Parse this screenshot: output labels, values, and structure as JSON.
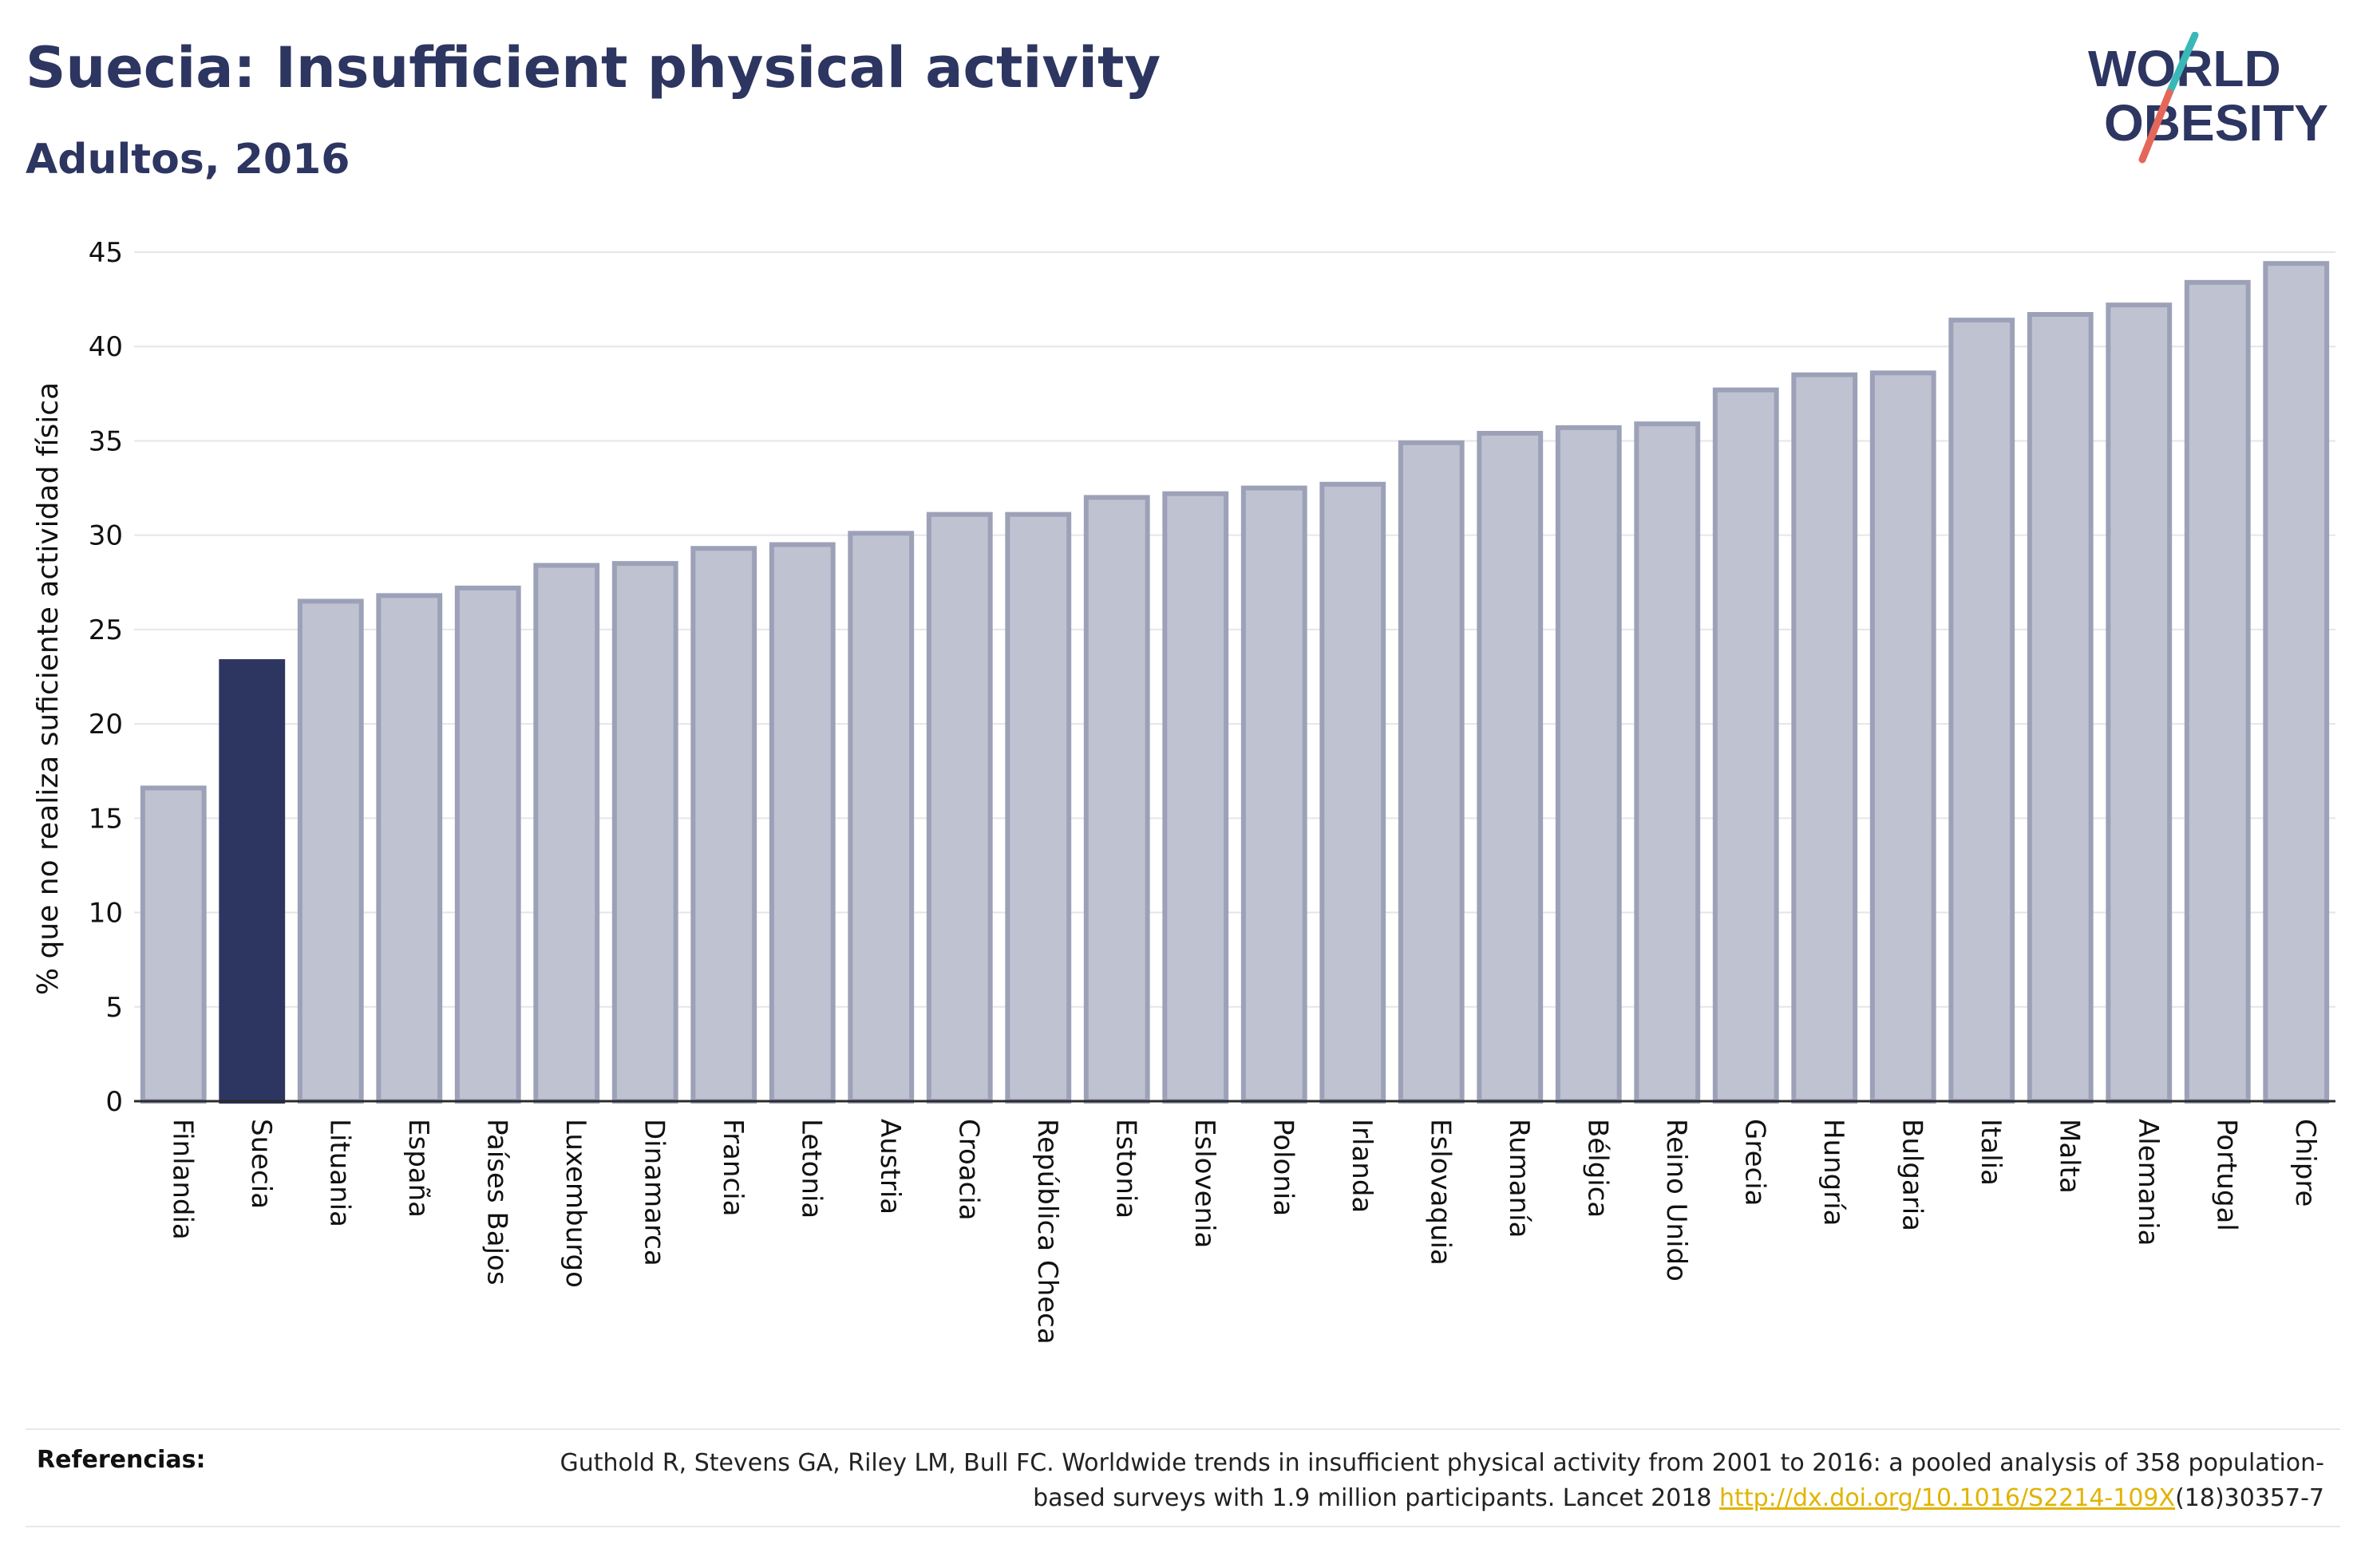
{
  "header": {
    "title": "Suecia: Insufficient physical activity",
    "subtitle": "Adultos, 2016"
  },
  "logo": {
    "line1": "WORLD",
    "line2": "OBESITY"
  },
  "references": {
    "label": "Referencias:",
    "text_before": "Guthold R, Stevens GA, Riley LM, Bull FC. Worldwide trends in insufficient physical activity from 2001 to 2016: a pooled analysis of 358 population-based surveys with 1.9 million participants. Lancet 2018 ",
    "link": "http://dx.doi.org/10.1016/S2214-109X",
    "text_after": "(18)30357-7"
  },
  "colors": {
    "highlight": "#2d3561",
    "bar_fill": "#bfc2d1",
    "bar_stroke": "#9da1b8",
    "link": "#e0b400"
  },
  "chart_data": {
    "type": "bar",
    "ylabel": "% que no realiza suficiente actividad física",
    "ylim": [
      0,
      45
    ],
    "yticks": [
      0,
      5,
      10,
      15,
      20,
      25,
      30,
      35,
      40,
      45
    ],
    "grid": true,
    "highlight": "Suecia",
    "categories": [
      "Finlandia",
      "Suecia",
      "Lituania",
      "España",
      "Países Bajos",
      "Luxemburgo",
      "Dinamarca",
      "Francia",
      "Letonia",
      "Austria",
      "Croacia",
      "República Checa",
      "Estonia",
      "Eslovenia",
      "Polonia",
      "Irlanda",
      "Eslovaquia",
      "Rumanía",
      "Bélgica",
      "Reino Unido",
      "Grecia",
      "Hungría",
      "Bulgaria",
      "Italia",
      "Malta",
      "Alemania",
      "Portugal",
      "Chipre"
    ],
    "values": [
      16.6,
      23.3,
      26.5,
      26.8,
      27.2,
      28.4,
      28.5,
      29.3,
      29.5,
      30.1,
      31.1,
      31.1,
      32.0,
      32.2,
      32.5,
      32.7,
      34.9,
      35.4,
      35.7,
      35.9,
      37.7,
      38.5,
      38.6,
      41.4,
      41.7,
      42.2,
      43.4,
      44.4
    ]
  }
}
